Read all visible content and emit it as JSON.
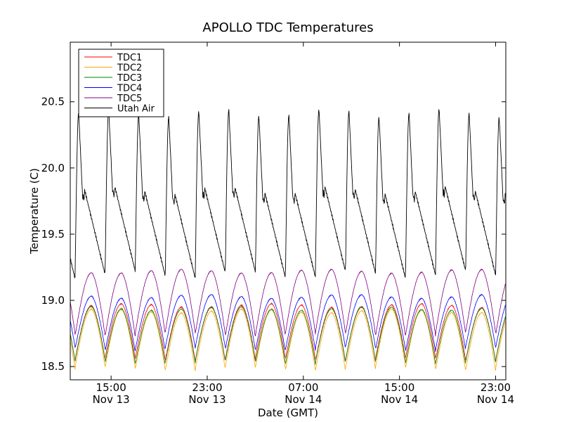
{
  "chart_data": {
    "type": "line",
    "title": "APOLLO TDC Temperatures",
    "xlabel": "Date (GMT)",
    "ylabel": "Temperature (C)",
    "ylim": [
      18.4,
      20.95
    ],
    "xlim_hours": [
      11.6,
      47.85
    ],
    "yticks": [
      {
        "value": 18.5,
        "label": "18.5"
      },
      {
        "value": 19.0,
        "label": "19.0"
      },
      {
        "value": 19.5,
        "label": "19.5"
      },
      {
        "value": 20.0,
        "label": "20.0"
      },
      {
        "value": 20.5,
        "label": "20.5"
      }
    ],
    "xticks": [
      {
        "hour": 15,
        "time": "15:00",
        "date": "Nov 13"
      },
      {
        "hour": 23,
        "time": "23:00",
        "date": "Nov 13"
      },
      {
        "hour": 31,
        "time": "07:00",
        "date": "Nov 14"
      },
      {
        "hour": 39,
        "time": "15:00",
        "date": "Nov 14"
      },
      {
        "hour": 47,
        "time": "23:00",
        "date": "Nov 14"
      }
    ],
    "legend_position": "top-left",
    "cycle": {
      "first_start_hour": 12.0,
      "period_hours": 2.5,
      "count": 15,
      "utah_rise_hours": 0.3,
      "tdc_rise_fraction": 0.55
    },
    "series": [
      {
        "name": "TDC1",
        "color": "#ff0000",
        "min": 18.55,
        "max": 18.96
      },
      {
        "name": "TDC2",
        "color": "#ffa500",
        "min": 18.48,
        "max": 18.92
      },
      {
        "name": "TDC3",
        "color": "#008000",
        "min": 18.53,
        "max": 18.94
      },
      {
        "name": "TDC4",
        "color": "#0000ff",
        "min": 18.63,
        "max": 19.03
      },
      {
        "name": "TDC5",
        "color": "#800080",
        "min": 18.74,
        "max": 19.22
      },
      {
        "name": "Utah Air",
        "color": "#000000",
        "min": 19.13,
        "max": 20.42
      }
    ]
  }
}
